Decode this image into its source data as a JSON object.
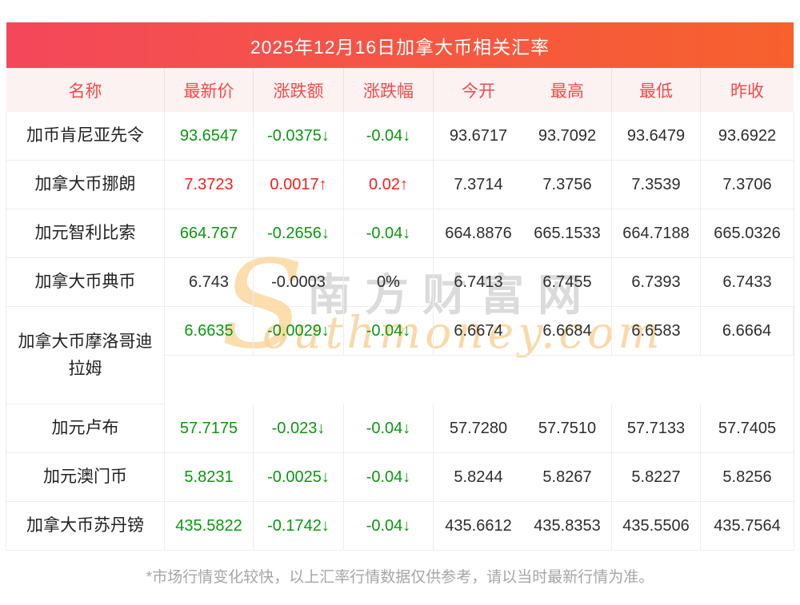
{
  "header": {
    "title": "2025年12月16日加拿大币相关汇率"
  },
  "table": {
    "columns": [
      "名称",
      "最新价",
      "涨跌额",
      "涨跌幅",
      "今开",
      "最高",
      "最低",
      "昨收"
    ],
    "rows": [
      {
        "name": "加币肯尼亚先令",
        "latest": "93.6547",
        "change": "-0.0375↓",
        "change_pct": "-0.04↓",
        "open": "93.6717",
        "high": "93.7092",
        "low": "93.6479",
        "prev_close": "93.6922",
        "direction": "down"
      },
      {
        "name": "加拿大币挪朗",
        "latest": "7.3723",
        "change": "0.0017↑",
        "change_pct": "0.02↑",
        "open": "7.3714",
        "high": "7.3756",
        "low": "7.3539",
        "prev_close": "7.3706",
        "direction": "up"
      },
      {
        "name": "加元智利比索",
        "latest": "664.767",
        "change": "-0.2656↓",
        "change_pct": "-0.04↓",
        "open": "664.8876",
        "high": "665.1533",
        "low": "664.7188",
        "prev_close": "665.0326",
        "direction": "down"
      },
      {
        "name": "加拿大币典币",
        "latest": "6.743",
        "change": "-0.0003",
        "change_pct": "0%",
        "open": "6.7413",
        "high": "6.7455",
        "low": "6.7393",
        "prev_close": "6.7433",
        "direction": "flat"
      },
      {
        "name": "加拿大币摩洛哥迪拉姆",
        "latest": "6.6635",
        "change": "-0.0029↓",
        "change_pct": "-0.04↓",
        "open": "6.6674",
        "high": "6.6684",
        "low": "6.6583",
        "prev_close": "6.6664",
        "direction": "down"
      },
      {
        "name": "加元卢布",
        "latest": "57.7175",
        "change": "-0.023↓",
        "change_pct": "-0.04↓",
        "open": "57.7280",
        "high": "57.7510",
        "low": "57.7133",
        "prev_close": "57.7405",
        "direction": "down"
      },
      {
        "name": "加元澳门币",
        "latest": "5.8231",
        "change": "-0.0025↓",
        "change_pct": "-0.04↓",
        "open": "5.8244",
        "high": "5.8267",
        "low": "5.8227",
        "prev_close": "5.8256",
        "direction": "down"
      },
      {
        "name": "加拿大币苏丹镑",
        "latest": "435.5822",
        "change": "-0.1742↓",
        "change_pct": "-0.04↓",
        "open": "435.6612",
        "high": "435.8353",
        "low": "435.5506",
        "prev_close": "435.7564",
        "direction": "down"
      }
    ]
  },
  "watermark": {
    "brand_initial": "S",
    "brand_cn": "南方财富网",
    "brand_en": "outhmoney.com"
  },
  "footnote": "*市场行情变化较快，以上汇率行情数据仅供参考，请以当时最新行情为准。",
  "colors": {
    "title_gradient_left": "#f4475b",
    "title_gradient_right": "#f7612d",
    "header_bg": "#fdf2f2",
    "header_text": "#f34a4a",
    "up": "#f61e1e",
    "down": "#0b9710",
    "flat": "#2e2e2e",
    "border": "#ededed"
  }
}
